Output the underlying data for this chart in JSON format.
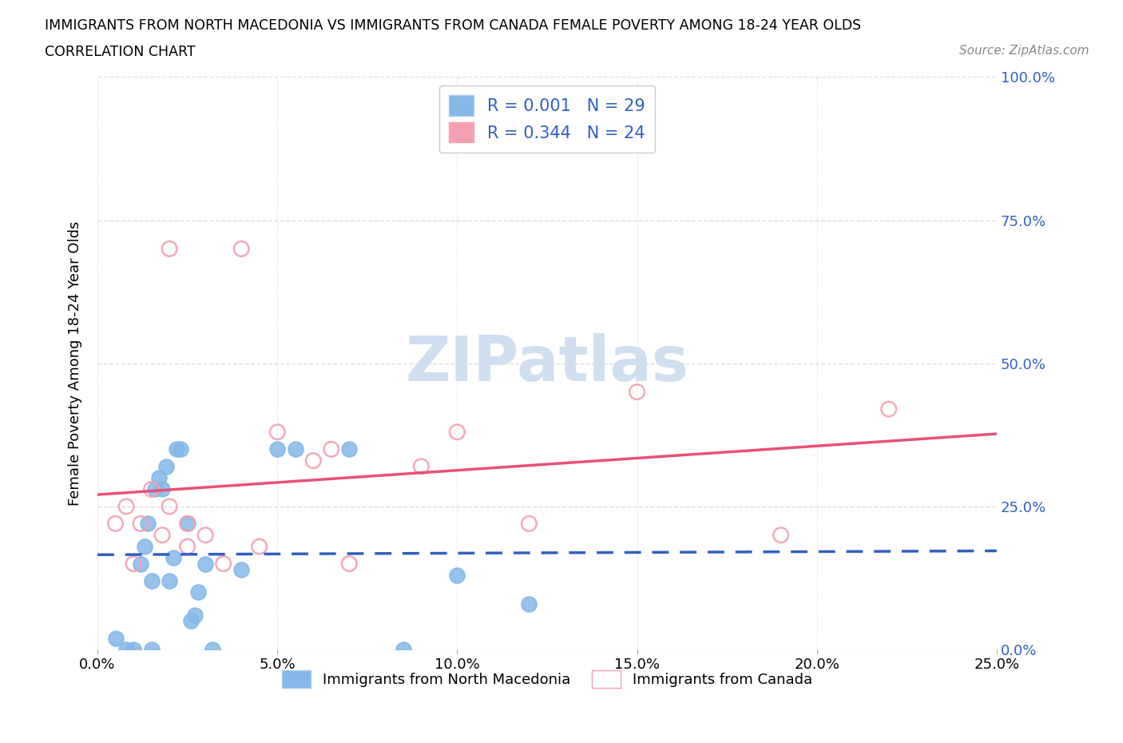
{
  "title_line1": "IMMIGRANTS FROM NORTH MACEDONIA VS IMMIGRANTS FROM CANADA FEMALE POVERTY AMONG 18-24 YEAR OLDS",
  "title_line2": "CORRELATION CHART",
  "source_text": "Source: ZipAtlas.com",
  "ylabel": "Female Poverty Among 18-24 Year Olds",
  "xlim": [
    0.0,
    0.25
  ],
  "ylim": [
    0.0,
    1.0
  ],
  "ytick_values": [
    0.0,
    0.25,
    0.5,
    0.75,
    1.0
  ],
  "xtick_values": [
    0.0,
    0.05,
    0.1,
    0.15,
    0.2,
    0.25
  ],
  "blue_R": "0.001",
  "blue_N": "29",
  "pink_R": "0.344",
  "pink_N": "24",
  "legend_label_blue": "Immigrants from North Macedonia",
  "legend_label_pink": "Immigrants from Canada",
  "blue_color": "#85b8e8",
  "pink_color": "#f4a0b0",
  "blue_line_color": "#3060c0",
  "pink_line_color": "#e8507a",
  "watermark_color": "#d0dff0",
  "grid_color": "#dddddd",
  "blue_scatter_x": [
    0.005,
    0.008,
    0.01,
    0.012,
    0.013,
    0.014,
    0.015,
    0.015,
    0.016,
    0.017,
    0.018,
    0.019,
    0.02,
    0.021,
    0.022,
    0.023,
    0.025,
    0.026,
    0.027,
    0.028,
    0.03,
    0.032,
    0.04,
    0.05,
    0.055,
    0.07,
    0.085,
    0.1,
    0.12
  ],
  "blue_scatter_y": [
    0.02,
    0.0,
    0.0,
    0.15,
    0.18,
    0.22,
    0.12,
    0.0,
    0.28,
    0.3,
    0.28,
    0.32,
    0.12,
    0.16,
    0.35,
    0.35,
    0.22,
    0.05,
    0.06,
    0.1,
    0.15,
    0.0,
    0.14,
    0.35,
    0.35,
    0.35,
    0.0,
    0.13,
    0.08
  ],
  "pink_scatter_x": [
    0.005,
    0.008,
    0.01,
    0.012,
    0.015,
    0.018,
    0.02,
    0.02,
    0.025,
    0.025,
    0.03,
    0.035,
    0.04,
    0.045,
    0.05,
    0.06,
    0.065,
    0.07,
    0.09,
    0.1,
    0.12,
    0.15,
    0.19,
    0.22
  ],
  "pink_scatter_y": [
    0.22,
    0.25,
    0.15,
    0.22,
    0.28,
    0.2,
    0.25,
    0.7,
    0.22,
    0.18,
    0.2,
    0.15,
    0.7,
    0.18,
    0.38,
    0.33,
    0.35,
    0.15,
    0.32,
    0.38,
    0.22,
    0.45,
    0.2,
    0.42
  ]
}
